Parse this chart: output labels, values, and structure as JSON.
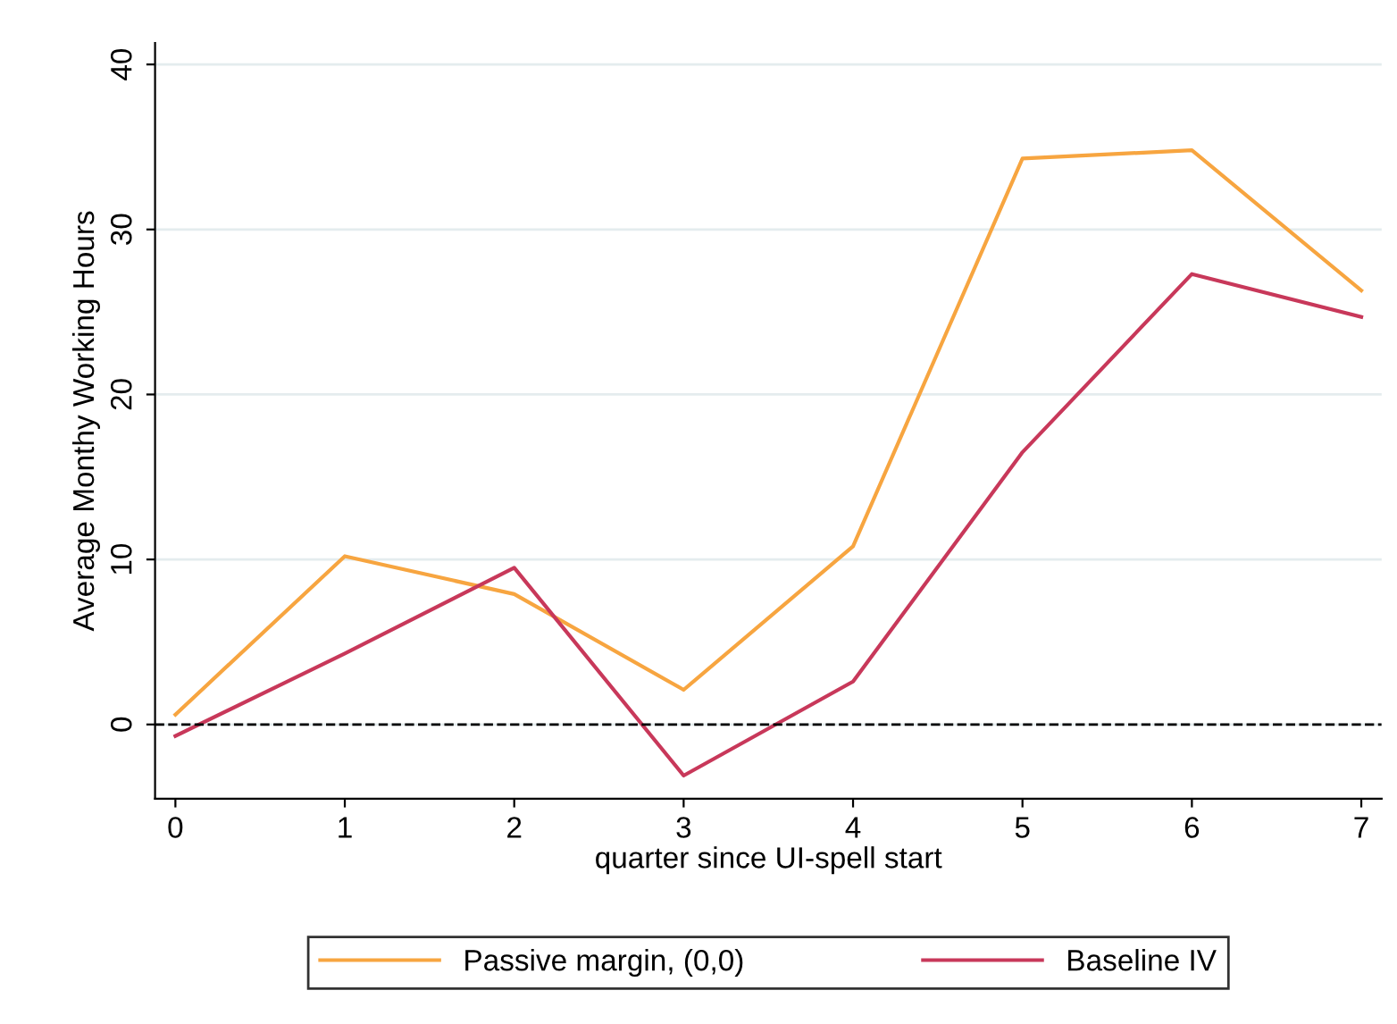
{
  "chart_data": {
    "type": "line",
    "xlabel": "quarter since UI-spell start",
    "ylabel": "Average Monthy Working Hours",
    "x": [
      0,
      1,
      2,
      3,
      4,
      5,
      6,
      7
    ],
    "series": [
      {
        "name": "Passive margin, (0,0)",
        "color": "#f7a540",
        "values": [
          0.6,
          10.2,
          7.9,
          2.1,
          10.8,
          34.3,
          34.8,
          26.3
        ]
      },
      {
        "name": "Baseline IV",
        "color": "#c8385a",
        "values": [
          -0.7,
          4.3,
          9.5,
          -3.1,
          2.6,
          16.5,
          27.3,
          24.7
        ]
      }
    ],
    "xlim": [
      -0.12,
      7.12
    ],
    "ylim": [
      -4.5,
      41.3
    ],
    "xticks": [
      0,
      1,
      2,
      3,
      4,
      5,
      6,
      7
    ],
    "yticks": [
      0,
      10,
      20,
      30,
      40
    ],
    "ref_lines": [
      {
        "axis": "y",
        "value": 0,
        "color": "#000000",
        "line_style": "dashed"
      }
    ],
    "grid": "y",
    "legend": "bottom",
    "marker": "none",
    "line_style": "solid"
  }
}
